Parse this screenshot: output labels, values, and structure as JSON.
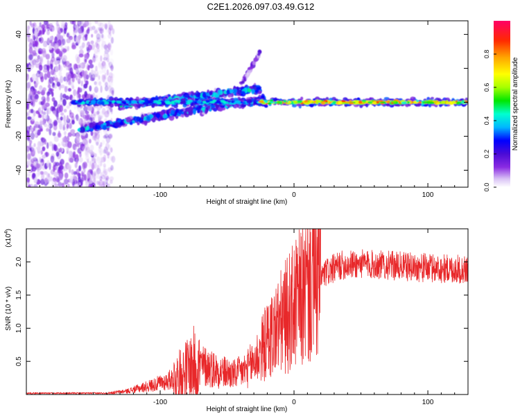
{
  "title": "C2E1.2026.097.03.49.G12",
  "chart_data": [
    {
      "type": "heatmap",
      "name": "spectrogram",
      "xlabel": "Height of straight line (km)",
      "ylabel": "Frequency (Hz)",
      "xlim": [
        -200,
        130
      ],
      "ylim": [
        -50,
        48
      ],
      "xticks": [
        -100,
        0,
        100
      ],
      "yticks": [
        -40,
        -20,
        0,
        20,
        40
      ],
      "colorbar": {
        "label": "Normalized spectral amplitude",
        "range": [
          0,
          1
        ],
        "ticks": [
          0.0,
          0.2,
          0.4,
          0.6,
          0.8
        ],
        "tick_labels": [
          "0.0",
          "0.2",
          "0.4",
          "0.6",
          "0.8"
        ],
        "colormap": [
          "#ffffff",
          "#d9c2f5",
          "#8a2be2",
          "#4b0bd6",
          "#0000ff",
          "#00b7ff",
          "#00ffd0",
          "#00e600",
          "#a6ff00",
          "#ffff00",
          "#ffa500",
          "#ff2a00",
          "#ff0066"
        ]
      },
      "features": [
        {
          "name": "main-line",
          "x": [
            -165,
            130
          ],
          "freq_hz": [
            0,
            0
          ],
          "amplitude": 0.8
        },
        {
          "name": "upper-branch",
          "x": [
            -130,
            -25
          ],
          "freq_hz": [
            -2,
            8
          ],
          "amplitude": 0.45
        },
        {
          "name": "lower-branch",
          "x": [
            -160,
            -22
          ],
          "freq_hz": [
            -16,
            2
          ],
          "amplitude": 0.4
        },
        {
          "name": "rising-streak",
          "x": [
            -40,
            -25
          ],
          "freq_hz": [
            10,
            30
          ],
          "amplitude": 0.2
        },
        {
          "name": "noise-region",
          "x": [
            -200,
            -135
          ],
          "freq_hz": [
            -50,
            48
          ],
          "amplitude": 0.15
        }
      ]
    },
    {
      "type": "line",
      "name": "snr",
      "color": "#e8282a",
      "xlabel": "Height of straight line (km)",
      "ylabel": "SNR (10 * v/v)",
      "scale_label": "(x10",
      "scale_exponent": "4",
      "scale_close": ")",
      "xlim": [
        -200,
        130
      ],
      "ylim": [
        0,
        2.5
      ],
      "xticks": [
        -100,
        0,
        100
      ],
      "yticks": [
        0.5,
        1.0,
        1.5,
        2.0
      ],
      "ytick_labels": [
        "0.5",
        "1.0",
        "1.5",
        "2.0"
      ],
      "trend": {
        "x": [
          -200,
          -140,
          -125,
          -110,
          -95,
          -85,
          -75,
          -65,
          -55,
          -45,
          -35,
          -28,
          -22,
          -15,
          -5,
          5,
          15,
          25,
          35,
          50,
          70,
          90,
          110,
          130
        ],
        "y": [
          0.02,
          0.02,
          0.05,
          0.12,
          0.2,
          0.3,
          0.45,
          0.42,
          0.35,
          0.3,
          0.38,
          0.55,
          0.75,
          0.95,
          1.2,
          1.45,
          1.7,
          1.85,
          1.95,
          1.97,
          1.95,
          1.92,
          1.9,
          1.88
        ]
      }
    }
  ]
}
